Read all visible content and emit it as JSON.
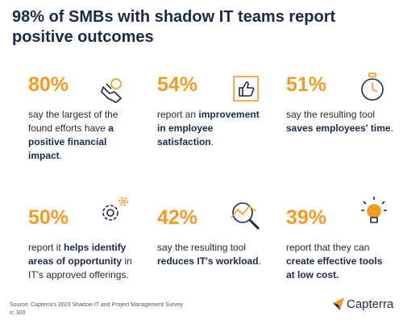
{
  "header": {
    "title_lines": [
      "98% of SMBs with shadow IT teams report",
      "positive outcomes"
    ]
  },
  "stats": [
    {
      "percent": "80%",
      "lines": [
        [
          {
            "t": "say the largest of the"
          }
        ],
        [
          {
            "t": "found efforts have "
          },
          {
            "t": "a",
            "b": true
          }
        ],
        [
          {
            "t": "positive financial",
            "b": true
          }
        ],
        [
          {
            "t": "impact",
            "b": true
          },
          {
            "t": "."
          }
        ]
      ]
    },
    {
      "percent": "54%",
      "lines": [
        [
          {
            "t": "report an "
          },
          {
            "t": "improvement",
            "b": true
          }
        ],
        [
          {
            "t": "in employee",
            "b": true
          }
        ],
        [
          {
            "t": "satisfaction",
            "b": true
          },
          {
            "t": "."
          }
        ]
      ]
    },
    {
      "percent": "51%",
      "lines": [
        [
          {
            "t": "say the resulting tool"
          }
        ],
        [
          {
            "t": "saves employees' time",
            "b": true
          },
          {
            "t": "."
          }
        ]
      ]
    },
    {
      "percent": "50%",
      "lines": [
        [
          {
            "t": "report it "
          },
          {
            "t": "helps identify",
            "b": true
          }
        ],
        [
          {
            "t": "areas of opportunity",
            "b": true
          },
          {
            "t": " in"
          }
        ],
        [
          {
            "t": "IT's approved offerings."
          }
        ]
      ]
    },
    {
      "percent": "42%",
      "lines": [
        [
          {
            "t": "say the resulting tool"
          }
        ],
        [
          {
            "t": "reduces IT's  workload",
            "b": true
          },
          {
            "t": "."
          }
        ]
      ]
    },
    {
      "percent": "39%",
      "lines": [
        [
          {
            "t": "report that they can"
          }
        ],
        [
          {
            "t": "create effective tools",
            "b": true
          }
        ],
        [
          {
            "t": "at low cost.",
            "b": true
          }
        ]
      ]
    }
  ],
  "footer": {
    "source": "Source: Capterra's 2023 Shadow IT and Project Management Survey",
    "n": "n: 300",
    "logo": "Capterra"
  }
}
